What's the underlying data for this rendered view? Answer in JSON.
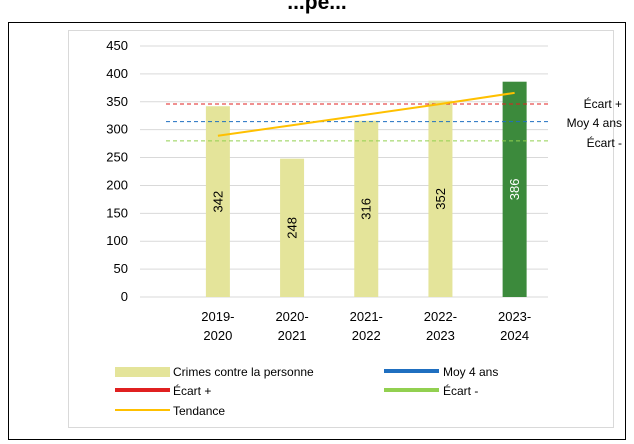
{
  "title": "...pe...",
  "chart_data": {
    "type": "bar",
    "categories": [
      [
        "2019-",
        "2020"
      ],
      [
        "2020-",
        "2021"
      ],
      [
        "2021-",
        "2022"
      ],
      [
        "2022-",
        "2023"
      ],
      [
        "2023-",
        "2024"
      ]
    ],
    "values": [
      342,
      248,
      316,
      352,
      386
    ],
    "value_labels": [
      "342",
      "248",
      "316",
      "352",
      "386"
    ],
    "yticks": [
      "0",
      "50",
      "100",
      "150",
      "200",
      "250",
      "300",
      "350",
      "400",
      "450"
    ],
    "ylim": [
      0,
      450
    ],
    "moy_4_ans": 314.5,
    "ecart_plus": 346,
    "ecart_minus": 280,
    "trend": [
      289,
      308,
      327,
      346,
      366
    ],
    "side_labels": {
      "ecart_plus": "Écart +",
      "moy": "Moy 4 ans",
      "ecart_minus": "Écart -"
    },
    "legend": {
      "crimes": "Crimes contre la personne",
      "moy": "Moy 4 ans",
      "ecart_plus": "Écart +",
      "ecart_minus": "Écart -",
      "tendance": "Tendance"
    },
    "colors": {
      "bar": "#e4e49a",
      "bar_highlight": "#3c8a3c",
      "moy": "#1f6fc0",
      "ecart_plus": "#e02020",
      "ecart_minus": "#92d050",
      "tendance": "#ffc000",
      "grid": "#d9d9d9"
    },
    "grid": true,
    "legend_position": "bottom"
  }
}
